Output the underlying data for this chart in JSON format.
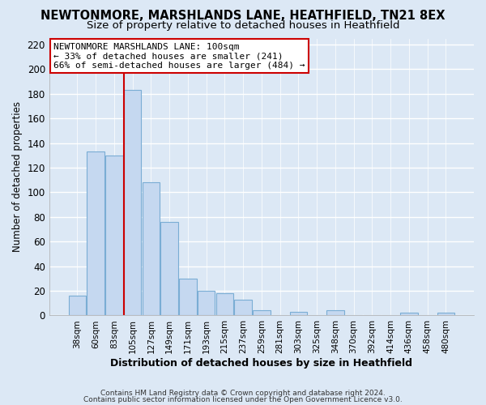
{
  "title": "NEWTONMORE, MARSHLANDS LANE, HEATHFIELD, TN21 8EX",
  "subtitle": "Size of property relative to detached houses in Heathfield",
  "xlabel": "Distribution of detached houses by size in Heathfield",
  "ylabel": "Number of detached properties",
  "bar_labels": [
    "38sqm",
    "60sqm",
    "83sqm",
    "105sqm",
    "127sqm",
    "149sqm",
    "171sqm",
    "193sqm",
    "215sqm",
    "237sqm",
    "259sqm",
    "281sqm",
    "303sqm",
    "325sqm",
    "348sqm",
    "370sqm",
    "392sqm",
    "414sqm",
    "436sqm",
    "458sqm",
    "480sqm"
  ],
  "bar_values": [
    16,
    133,
    130,
    183,
    108,
    76,
    30,
    20,
    18,
    13,
    4,
    0,
    3,
    0,
    4,
    0,
    0,
    0,
    2,
    0,
    2
  ],
  "bar_color": "#c5d8f0",
  "bar_edge_color": "#7aadd4",
  "vline_color": "#cc0000",
  "ylim": [
    0,
    225
  ],
  "yticks": [
    0,
    20,
    40,
    60,
    80,
    100,
    120,
    140,
    160,
    180,
    200,
    220
  ],
  "annotation_text": "NEWTONMORE MARSHLANDS LANE: 100sqm\n← 33% of detached houses are smaller (241)\n66% of semi-detached houses are larger (484) →",
  "annotation_box_edgecolor": "#cc0000",
  "footer1": "Contains HM Land Registry data © Crown copyright and database right 2024.",
  "footer2": "Contains public sector information licensed under the Open Government Licence v3.0.",
  "bg_color": "#dce8f5",
  "grid_color": "#ffffff",
  "title_fontsize": 10.5,
  "subtitle_fontsize": 9.5
}
